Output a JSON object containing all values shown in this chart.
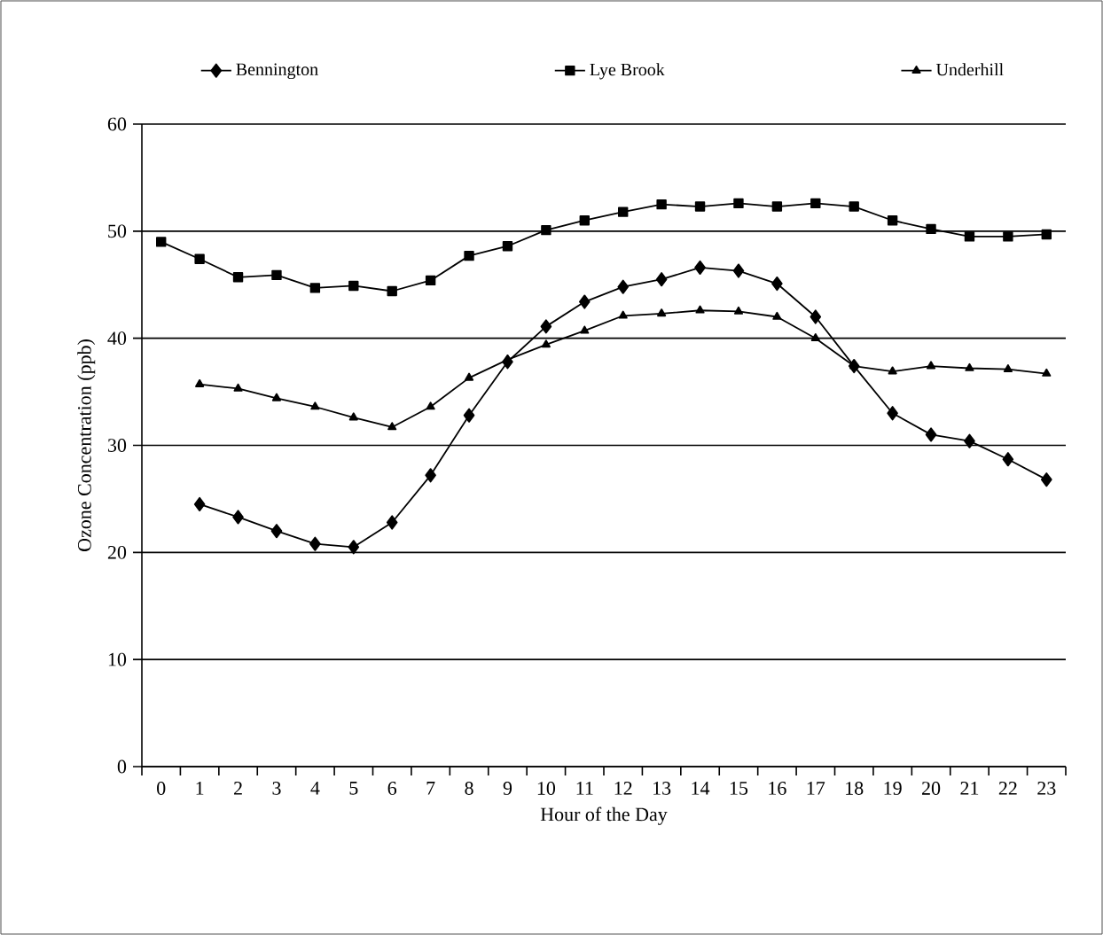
{
  "chart_data": {
    "type": "line",
    "xlabel": "Hour of the Day",
    "ylabel": "Ozone Concentration (ppb)",
    "categories": [
      "0",
      "1",
      "2",
      "3",
      "4",
      "5",
      "6",
      "7",
      "8",
      "9",
      "10",
      "11",
      "12",
      "13",
      "14",
      "15",
      "16",
      "17",
      "18",
      "19",
      "20",
      "21",
      "22",
      "23"
    ],
    "series": [
      {
        "name": "Bennington",
        "color": "#000000",
        "marker": "diamond",
        "values": [
          null,
          24.5,
          23.3,
          22.0,
          20.8,
          20.5,
          22.8,
          27.2,
          32.8,
          37.8,
          41.1,
          43.4,
          44.8,
          45.5,
          46.6,
          46.3,
          45.1,
          42.0,
          37.4,
          33.0,
          31.0,
          30.4,
          28.7,
          26.8
        ]
      },
      {
        "name": "Lye Brook",
        "color": "#000000",
        "marker": "square",
        "values": [
          49.0,
          47.4,
          45.7,
          45.9,
          44.7,
          44.9,
          44.4,
          45.4,
          47.7,
          48.6,
          50.1,
          51.0,
          51.8,
          52.5,
          52.3,
          52.6,
          52.3,
          52.6,
          52.3,
          51.0,
          50.2,
          49.5,
          49.5,
          49.7
        ]
      },
      {
        "name": "Underhill",
        "color": "#000000",
        "marker": "triangle",
        "values": [
          null,
          35.7,
          35.3,
          34.4,
          33.6,
          32.6,
          31.7,
          33.6,
          36.3,
          38.0,
          39.4,
          40.7,
          42.1,
          42.3,
          42.6,
          42.5,
          42.0,
          40.0,
          37.4,
          36.9,
          37.4,
          37.2,
          37.1,
          36.7
        ]
      }
    ],
    "ylim": [
      0,
      60
    ],
    "yticks": [
      0,
      10,
      20,
      30,
      40,
      50,
      60
    ],
    "grid": "y",
    "legend": "top",
    "line_style": "solid"
  }
}
